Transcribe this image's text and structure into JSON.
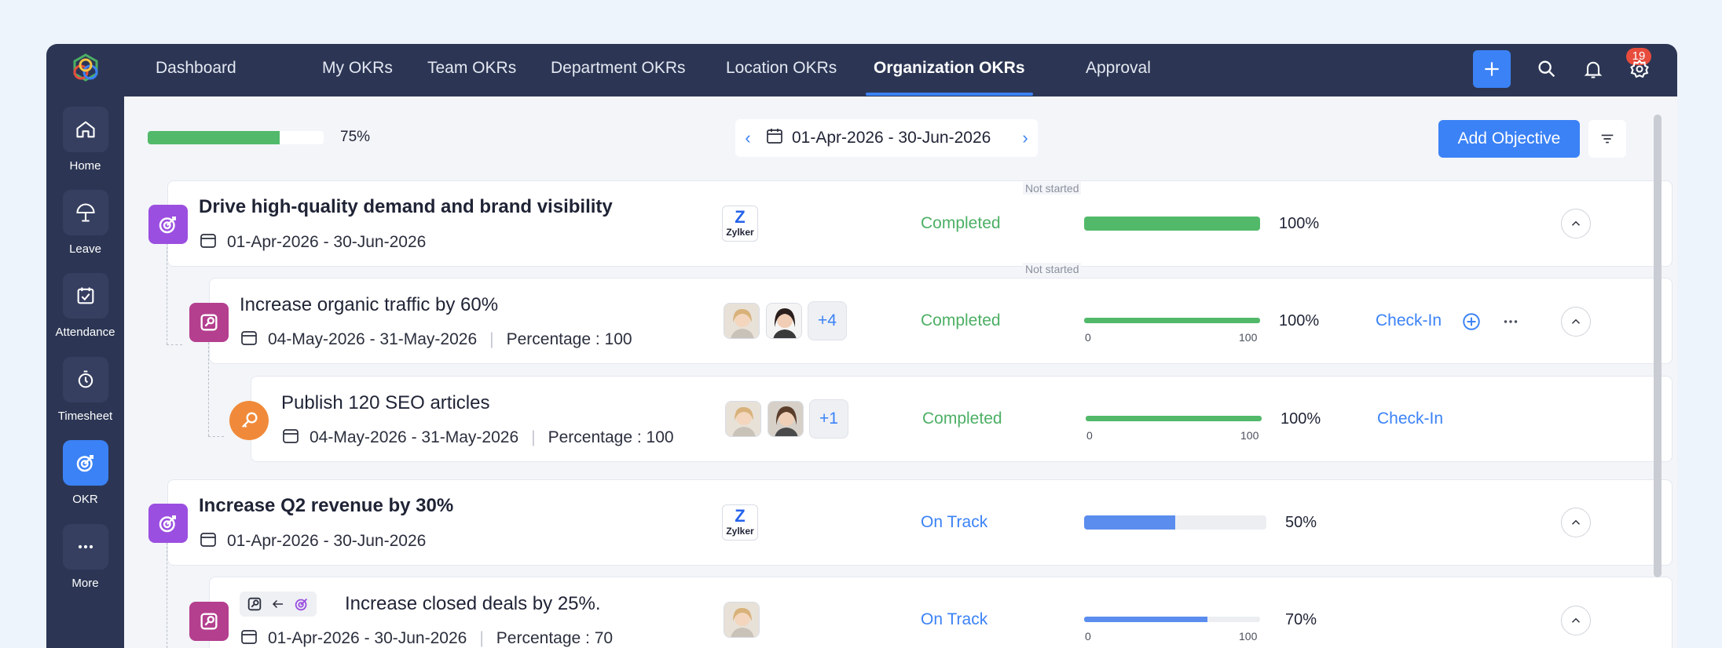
{
  "sidebar": {
    "items": [
      {
        "label": "Home",
        "icon": "home-icon"
      },
      {
        "label": "Leave",
        "icon": "umbrella-icon"
      },
      {
        "label": "Attendance",
        "icon": "calendar-check-icon"
      },
      {
        "label": "Timesheet",
        "icon": "timer-icon"
      },
      {
        "label": "OKR",
        "icon": "target-icon",
        "active": true
      },
      {
        "label": "More",
        "icon": "more-icon"
      }
    ]
  },
  "nav": {
    "tabs": [
      "Dashboard",
      "My OKRs",
      "Team OKRs",
      "Department OKRs",
      "Location OKRs",
      "Organization OKRs",
      "Approval"
    ],
    "active_tab": "Organization OKRs",
    "notification_count": "19"
  },
  "toolbar": {
    "overall_progress": 75,
    "overall_progress_label": "75%",
    "date_range": "01-Apr-2026 - 30-Jun-2026",
    "add_objective_label": "Add Objective"
  },
  "labels": {
    "not_started": "Not started",
    "check_in": "Check-In",
    "scale_min": "0",
    "scale_max": "100",
    "owner_logo_text": "Zylker"
  },
  "okrs": [
    {
      "type": "objective",
      "title": "Drive high-quality demand and brand visibility",
      "dates": "01-Apr-2026 - 30-Jun-2026",
      "status": "Completed",
      "progress": 100,
      "progress_label": "100%"
    },
    {
      "type": "key-result",
      "title": "Increase organic traffic by 60%",
      "dates": "04-May-2026 - 31-May-2026",
      "percentage": "Percentage : 100",
      "more_owners": "+4",
      "status": "Completed",
      "progress": 100,
      "progress_label": "100%"
    },
    {
      "type": "initiative",
      "title": "Publish 120 SEO articles",
      "dates": "04-May-2026 - 31-May-2026",
      "percentage": "Percentage : 100",
      "more_owners": "+1",
      "status": "Completed",
      "progress": 100,
      "progress_label": "100%"
    },
    {
      "type": "objective",
      "title": "Increase Q2 revenue by 30%",
      "dates": "01-Apr-2026 - 30-Jun-2026",
      "status": "On Track",
      "progress": 50,
      "progress_label": "50%"
    },
    {
      "type": "key-result",
      "title": "Increase closed deals by 25%.",
      "dates": "01-Apr-2026 - 30-Jun-2026",
      "percentage": "Percentage : 70",
      "status": "On Track",
      "progress": 70,
      "progress_label": "70%"
    }
  ],
  "colors": {
    "accent": "#3b82f6",
    "sidebar": "#2c3654",
    "completed": "#4caf64",
    "on_track": "#3b82f6"
  }
}
